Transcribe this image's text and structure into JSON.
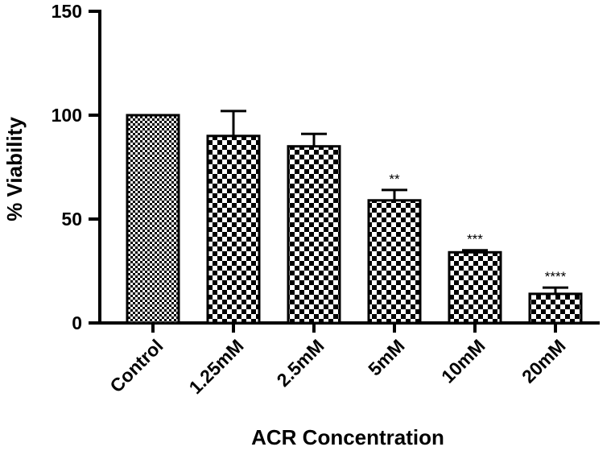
{
  "chart_data": {
    "type": "bar",
    "categories": [
      "Control",
      "1.25mM",
      "2.5mM",
      "5mM",
      "10mM",
      "20mM"
    ],
    "series": [
      {
        "values": [
          100,
          90,
          85,
          59,
          34,
          14
        ],
        "error": [
          0,
          12,
          6,
          5,
          1,
          3
        ]
      }
    ],
    "significance": [
      "",
      "",
      "",
      "**",
      "***",
      "****"
    ],
    "title": "",
    "xlabel": "ACR Concentration",
    "ylabel": "% Viability",
    "ylim": [
      0,
      150
    ],
    "yticks": [
      0,
      50,
      100,
      150
    ],
    "grid": false,
    "legend": "none",
    "bar_fill": "checkerboard",
    "bar_colors": [
      "#000000",
      "#ffffff"
    ]
  }
}
